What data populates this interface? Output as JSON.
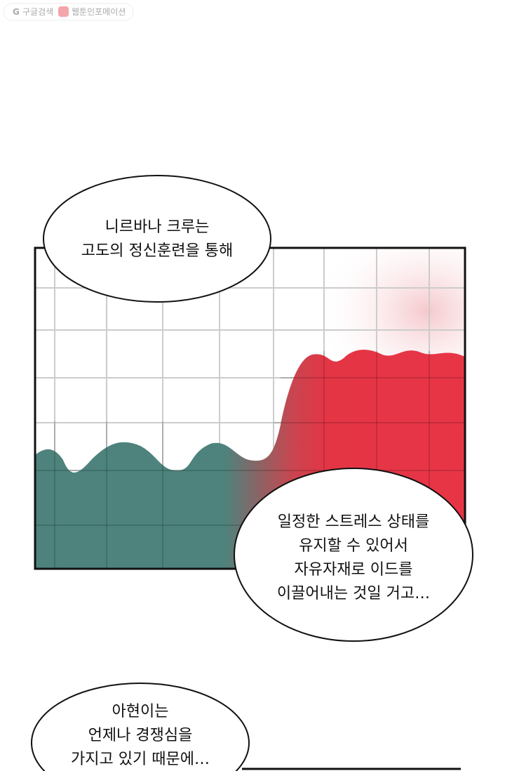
{
  "watermark": {
    "search": "구글검색",
    "site": "웹툰인포메이션"
  },
  "bubbles": [
    {
      "lines": [
        "니르바나 크루는",
        "고도의 정신훈련을 통해"
      ]
    },
    {
      "lines": [
        "일정한 스트레스 상태를",
        "유지할 수 있어서",
        "자유자재로 이드를",
        "이끌어내는 것일 거고…"
      ]
    },
    {
      "lines": [
        "아현이는",
        "언제나 경쟁심을",
        "가지고 있기 때문에…"
      ]
    }
  ]
}
